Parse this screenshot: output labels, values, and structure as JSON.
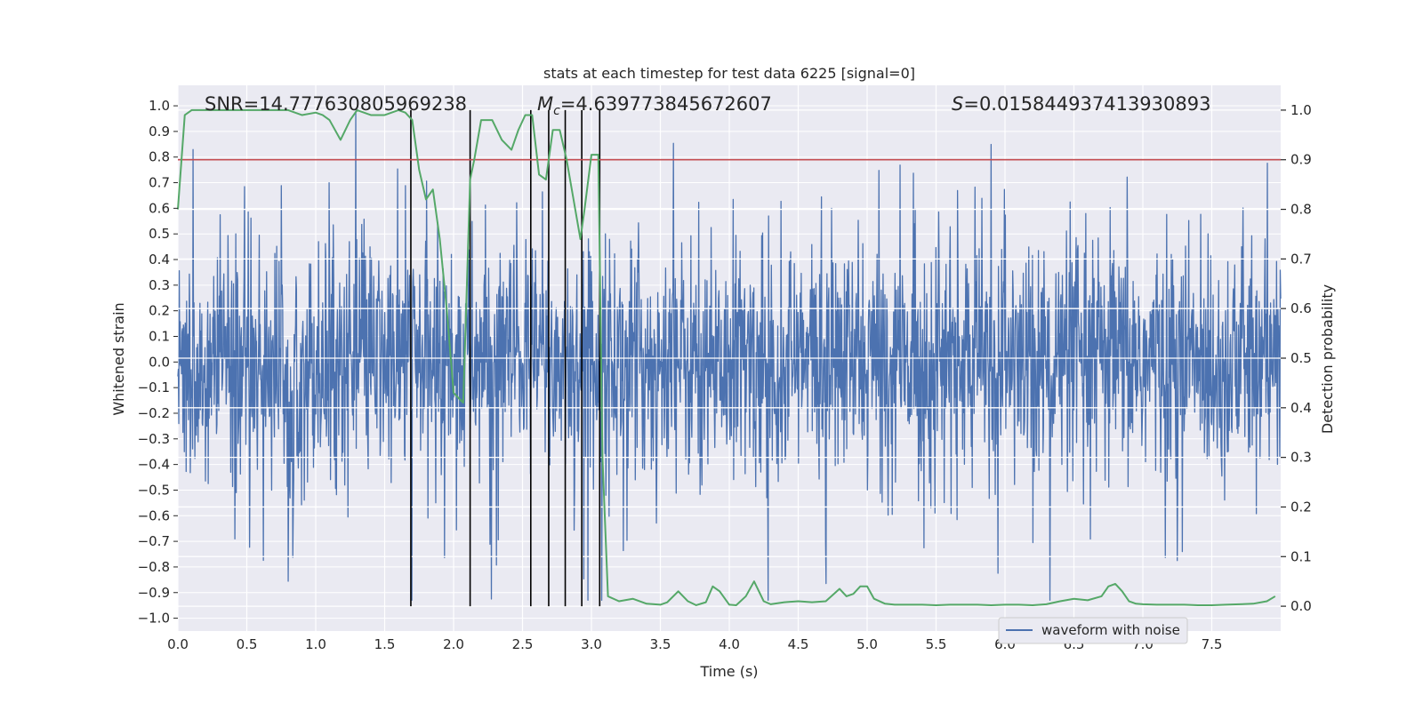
{
  "chart_data": {
    "type": "line",
    "title": "stats at each timestep for test data 6225 [signal=0]",
    "xlabel": "Time (s)",
    "ylabel_left": "Whitened strain",
    "ylabel_right": "Detection probability",
    "xlim": [
      0,
      8
    ],
    "ylim_left": [
      -1.05,
      1.08
    ],
    "ylim_right": [
      -0.05,
      1.05
    ],
    "x_ticks": [
      "0.0",
      "0.5",
      "1.0",
      "1.5",
      "2.0",
      "2.5",
      "3.0",
      "3.5",
      "4.0",
      "4.5",
      "5.0",
      "5.5",
      "6.0",
      "6.5",
      "7.0",
      "7.5"
    ],
    "y_left_ticks": [
      "-1.0",
      "-0.9",
      "-0.8",
      "-0.7",
      "-0.6",
      "-0.5",
      "-0.4",
      "-0.3",
      "-0.2",
      "-0.1",
      "0.0",
      "0.1",
      "0.2",
      "0.3",
      "0.4",
      "0.5",
      "0.6",
      "0.7",
      "0.8",
      "0.9",
      "1.0"
    ],
    "y_right_ticks": [
      "0.0",
      "0.1",
      "0.2",
      "0.3",
      "0.4",
      "0.5",
      "0.6",
      "0.7",
      "0.8",
      "0.9",
      "1.0"
    ],
    "annotations": {
      "snr": "SNR=14.777630805969238",
      "mc_symbol": "M",
      "mc_subscript": "c",
      "mc_value": "=4.639773845672607",
      "s_symbol": "S",
      "s_value": "=0.015844937413930893"
    },
    "legend": {
      "label": "waveform with noise",
      "position": "lower-right"
    },
    "threshold": {
      "value": 0.9,
      "axis": "right",
      "color": "#c44e52"
    },
    "vertical_lines_x": [
      1.69,
      2.12,
      2.56,
      2.69,
      2.81,
      2.93,
      3.06
    ],
    "waveform": {
      "name": "waveform with noise",
      "color": "#4c72b0",
      "duration_s": 8.0,
      "envelope_min": -0.93,
      "envelope_max": 1.0
    },
    "probability_series": {
      "color": "#55a868",
      "x": [
        0.0,
        0.05,
        0.1,
        0.2,
        0.3,
        0.4,
        0.5,
        0.6,
        0.7,
        0.8,
        0.9,
        1.0,
        1.05,
        1.1,
        1.18,
        1.25,
        1.3,
        1.4,
        1.5,
        1.6,
        1.65,
        1.7,
        1.75,
        1.8,
        1.85,
        1.9,
        1.95,
        2.0,
        2.07,
        2.12,
        2.15,
        2.2,
        2.28,
        2.35,
        2.42,
        2.47,
        2.52,
        2.57,
        2.62,
        2.67,
        2.72,
        2.77,
        2.82,
        2.87,
        2.92,
        2.95,
        3.0,
        3.05,
        3.08,
        3.12,
        3.2,
        3.3,
        3.4,
        3.5,
        3.55,
        3.63,
        3.7,
        3.76,
        3.83,
        3.88,
        3.93,
        4.0,
        4.05,
        4.12,
        4.18,
        4.25,
        4.3,
        4.4,
        4.5,
        4.6,
        4.7,
        4.8,
        4.85,
        4.9,
        4.95,
        5.0,
        5.05,
        5.13,
        5.2,
        5.3,
        5.4,
        5.5,
        5.6,
        5.7,
        5.8,
        5.9,
        6.0,
        6.1,
        6.2,
        6.3,
        6.4,
        6.5,
        6.6,
        6.7,
        6.75,
        6.8,
        6.85,
        6.9,
        6.95,
        7.0,
        7.1,
        7.2,
        7.3,
        7.4,
        7.5,
        7.6,
        7.7,
        7.8,
        7.9,
        7.96
      ],
      "y": [
        0.8,
        0.99,
        1.0,
        1.0,
        1.0,
        1.0,
        1.0,
        1.0,
        1.0,
        1.0,
        0.99,
        0.995,
        0.99,
        0.98,
        0.94,
        0.98,
        1.0,
        0.99,
        0.99,
        1.0,
        0.995,
        0.98,
        0.88,
        0.82,
        0.84,
        0.74,
        0.6,
        0.43,
        0.41,
        0.86,
        0.9,
        0.98,
        0.98,
        0.94,
        0.92,
        0.96,
        0.99,
        0.99,
        0.87,
        0.86,
        0.96,
        0.96,
        0.9,
        0.82,
        0.74,
        0.8,
        0.91,
        0.91,
        0.3,
        0.02,
        0.01,
        0.015,
        0.005,
        0.003,
        0.008,
        0.03,
        0.01,
        0.002,
        0.008,
        0.04,
        0.03,
        0.003,
        0.002,
        0.02,
        0.05,
        0.01,
        0.004,
        0.008,
        0.01,
        0.008,
        0.01,
        0.035,
        0.02,
        0.025,
        0.04,
        0.04,
        0.015,
        0.005,
        0.003,
        0.003,
        0.003,
        0.002,
        0.003,
        0.003,
        0.003,
        0.002,
        0.003,
        0.003,
        0.002,
        0.004,
        0.01,
        0.015,
        0.012,
        0.02,
        0.04,
        0.045,
        0.03,
        0.01,
        0.005,
        0.004,
        0.003,
        0.003,
        0.003,
        0.002,
        0.002,
        0.003,
        0.004,
        0.005,
        0.01,
        0.02
      ]
    }
  }
}
